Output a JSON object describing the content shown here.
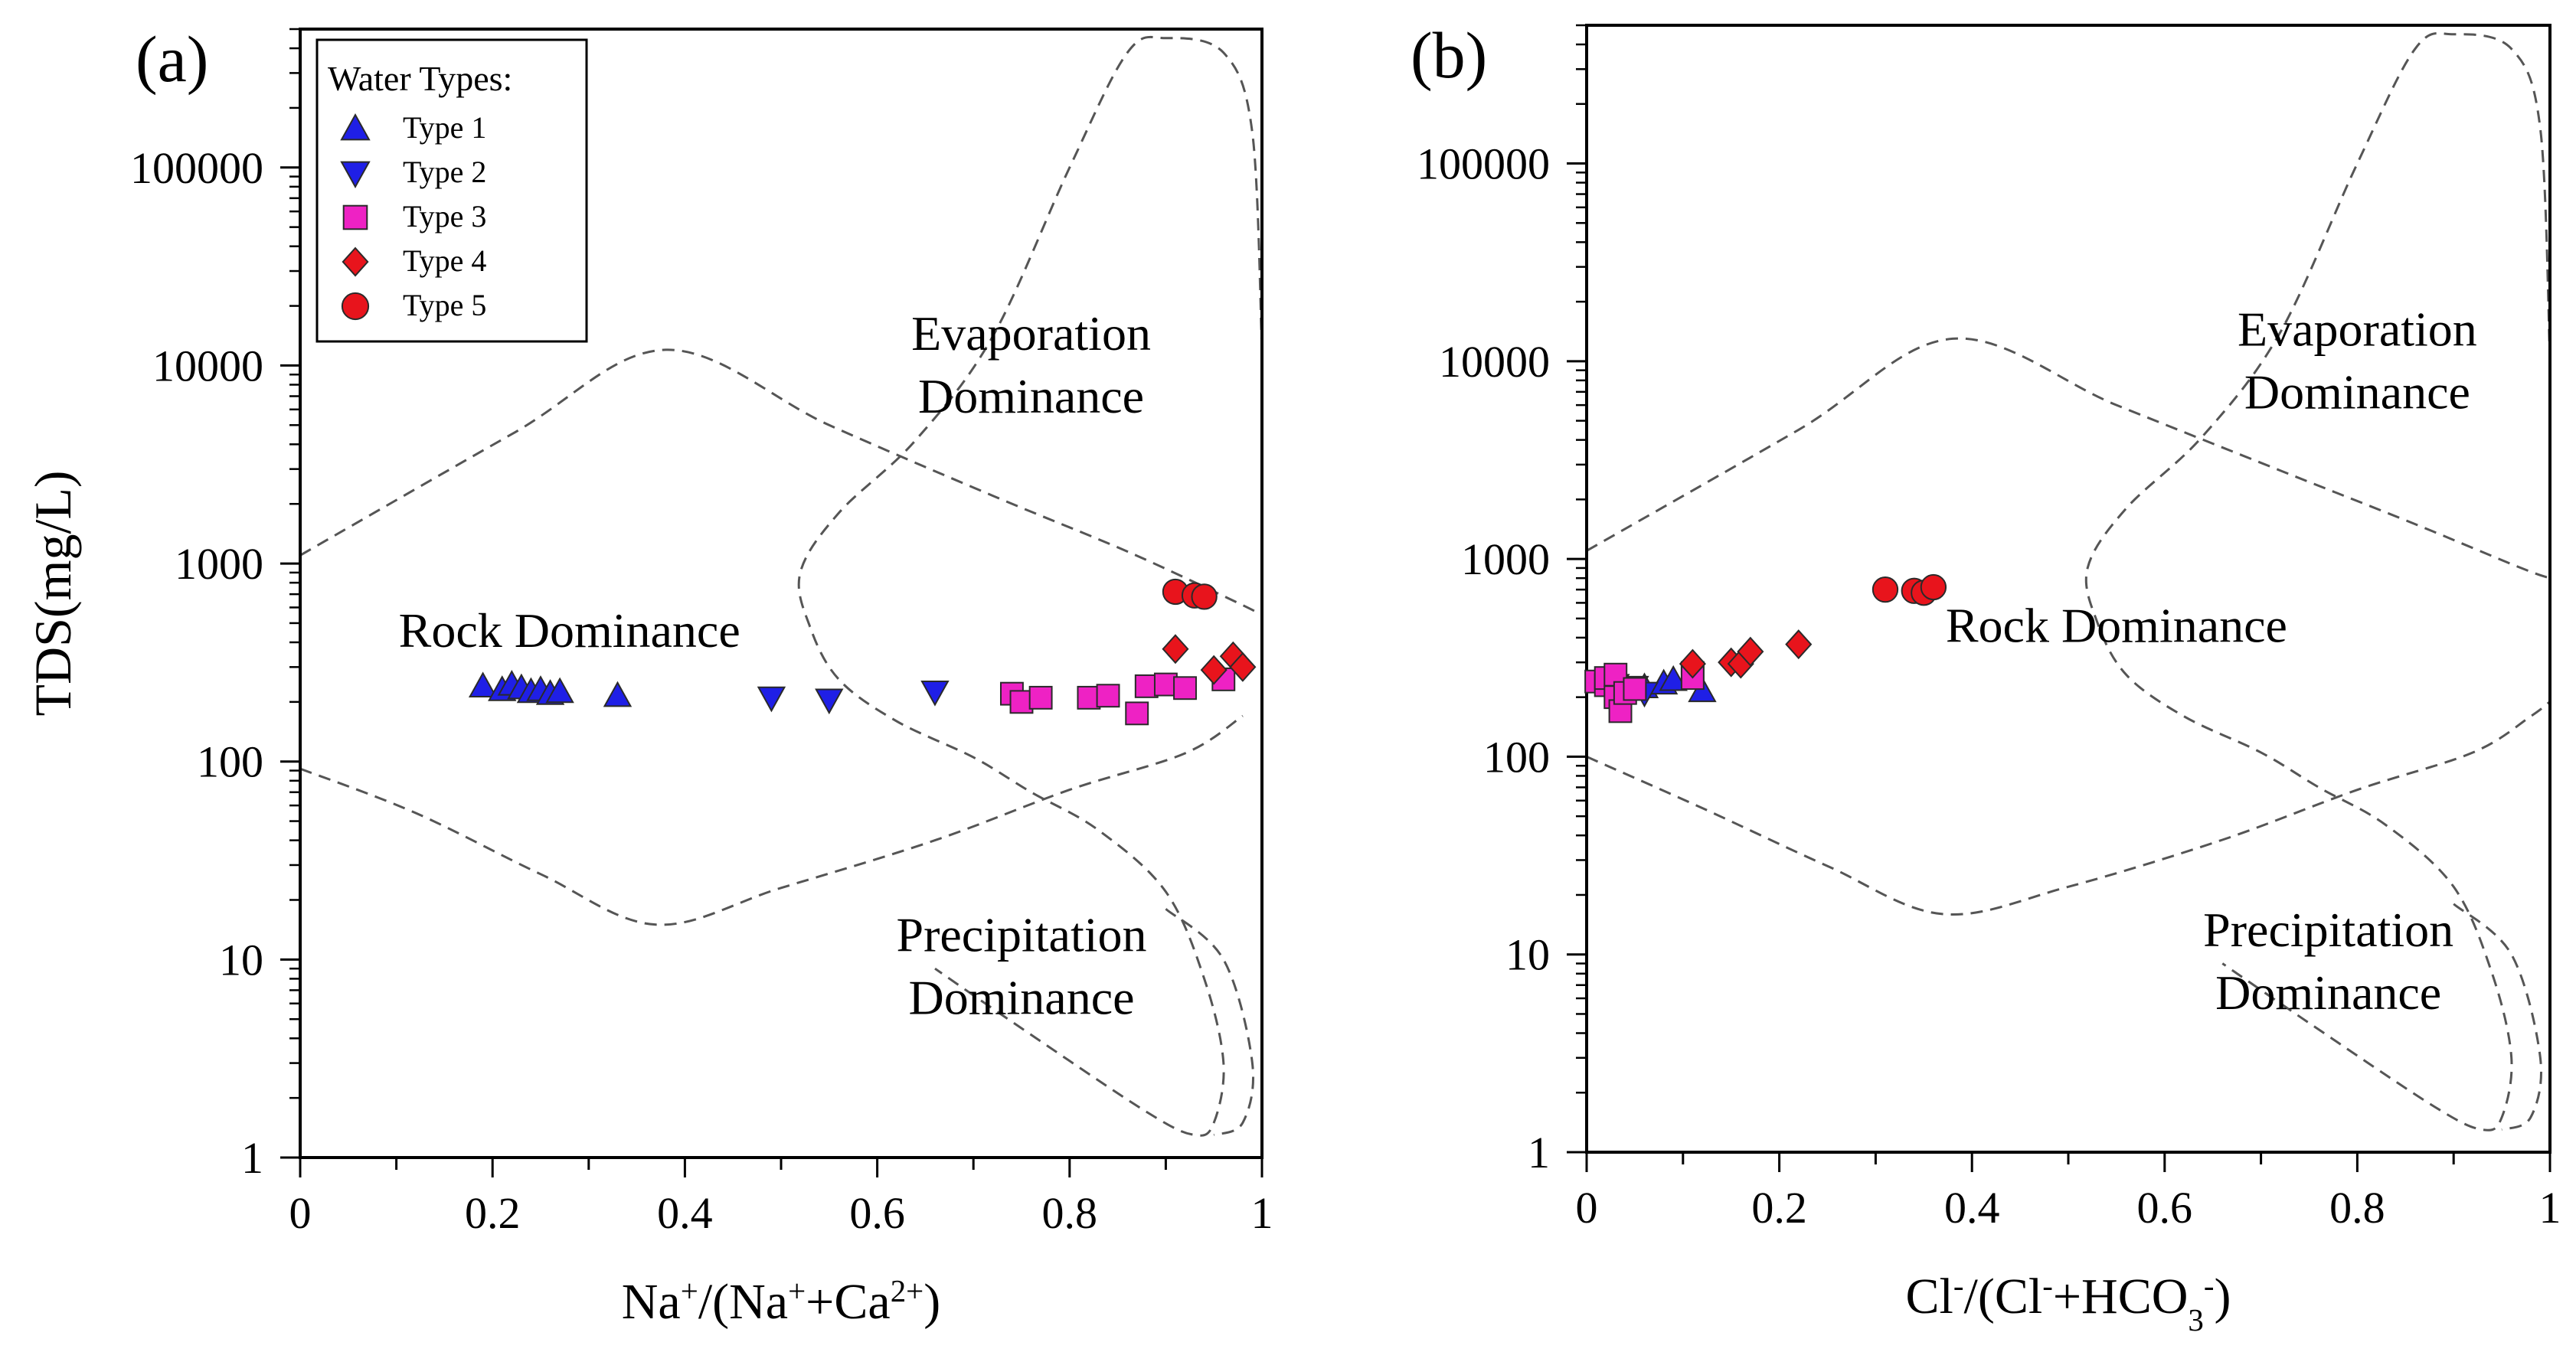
{
  "chart_data": [
    {
      "type": "scatter",
      "panel_label": "(a)",
      "xlabel": "Na+/(Na++Ca2+)",
      "xlabel_parts": [
        {
          "t": "Na",
          "sup": false
        },
        {
          "t": "+",
          "sup": true
        },
        {
          "t": "/(Na",
          "sup": false
        },
        {
          "t": "+",
          "sup": true
        },
        {
          "t": "+Ca",
          "sup": false
        },
        {
          "t": "2+",
          "sup": true
        },
        {
          "t": ")",
          "sup": false
        }
      ],
      "ylabel": "TDS(mg/L)",
      "xlim": [
        0,
        1
      ],
      "ylim": [
        1,
        500000
      ],
      "yscale": "log",
      "x_ticks": [
        0,
        0.2,
        0.4,
        0.6,
        0.8,
        1
      ],
      "x_tick_labels": [
        "0",
        "0.2",
        "0.4",
        "0.6",
        "0.8",
        "1"
      ],
      "y_ticks": [
        1,
        10,
        100,
        1000,
        10000,
        100000
      ],
      "y_tick_labels": [
        "1",
        "10",
        "100",
        "1000",
        "10000",
        "100000"
      ],
      "legend": {
        "title": "Water Types:",
        "position": "top-left",
        "entries": [
          {
            "label": "Type 1",
            "marker": "triangle-up",
            "color": "#1f1fe6"
          },
          {
            "label": "Type 2",
            "marker": "triangle-down",
            "color": "#1f1fe6"
          },
          {
            "label": "Type 3",
            "marker": "square",
            "color": "#ee22c4"
          },
          {
            "label": "Type 4",
            "marker": "diamond",
            "color": "#e8141c"
          },
          {
            "label": "Type 5",
            "marker": "circle",
            "color": "#e8141c"
          }
        ]
      },
      "region_labels": [
        {
          "lines": [
            "Evaporation",
            "Dominance"
          ],
          "x": 0.76,
          "y": 12000
        },
        {
          "lines": [
            "Rock Dominance"
          ],
          "x": 0.28,
          "y": 380
        },
        {
          "lines": [
            "Precipitation",
            "Dominance"
          ],
          "x": 0.75,
          "y": 11
        }
      ],
      "boundaries": [
        {
          "name": "upper",
          "points": [
            [
              0,
              1100
            ],
            [
              0.22,
              4500
            ],
            [
              0.38,
              12000
            ],
            [
              0.55,
              5000
            ],
            [
              0.72,
              2200
            ],
            [
              0.86,
              1150
            ],
            [
              0.97,
              650
            ],
            [
              1.0,
              550
            ]
          ]
        },
        {
          "name": "lower",
          "points": [
            [
              0,
              92
            ],
            [
              0.12,
              55
            ],
            [
              0.25,
              27
            ],
            [
              0.37,
              15
            ],
            [
              0.5,
              23
            ],
            [
              0.66,
              40
            ],
            [
              0.8,
              72
            ],
            [
              0.92,
              110
            ],
            [
              0.98,
              170
            ]
          ]
        },
        {
          "name": "envelope",
          "points": [
            [
              1.0,
              12000
            ],
            [
              0.99,
              150000
            ],
            [
              0.96,
              380000
            ],
            [
              0.9,
              450000
            ],
            [
              0.86,
              380000
            ],
            [
              0.8,
              100000
            ],
            [
              0.72,
              14000
            ],
            [
              0.64,
              4200
            ],
            [
              0.56,
              1800
            ],
            [
              0.52,
              900
            ],
            [
              0.53,
              480
            ],
            [
              0.56,
              260
            ],
            [
              0.62,
              160
            ],
            [
              0.7,
              105
            ],
            [
              0.76,
              70
            ],
            [
              0.83,
              45
            ],
            [
              0.9,
              22
            ],
            [
              0.94,
              8
            ],
            [
              0.96,
              3
            ],
            [
              0.95,
              1.5
            ],
            [
              0.93,
              1.3
            ],
            [
              0.88,
              1.7
            ],
            [
              0.75,
              4.5
            ],
            [
              0.66,
              9
            ]
          ]
        },
        {
          "name": "envelope-right",
          "points": [
            [
              0.9,
              18
            ],
            [
              0.96,
              10
            ],
            [
              0.99,
              3
            ],
            [
              0.98,
              1.5
            ],
            [
              0.95,
              1.3
            ]
          ]
        }
      ],
      "series": [
        {
          "name": "Type 1",
          "marker": "triangle-up",
          "color": "#1f1fe6",
          "points": [
            [
              0.19,
              240
            ],
            [
              0.21,
              230
            ],
            [
              0.22,
              245
            ],
            [
              0.23,
              235
            ],
            [
              0.24,
              225
            ],
            [
              0.25,
              230
            ],
            [
              0.26,
              220
            ],
            [
              0.27,
              225
            ],
            [
              0.33,
              215
            ]
          ]
        },
        {
          "name": "Type 2",
          "marker": "triangle-down",
          "color": "#1f1fe6",
          "points": [
            [
              0.49,
              210
            ],
            [
              0.55,
              205
            ],
            [
              0.66,
              225
            ]
          ]
        },
        {
          "name": "Type 3",
          "marker": "square",
          "color": "#ee22c4",
          "points": [
            [
              0.74,
              220
            ],
            [
              0.75,
              200
            ],
            [
              0.77,
              210
            ],
            [
              0.82,
              210
            ],
            [
              0.84,
              215
            ],
            [
              0.87,
              175
            ],
            [
              0.88,
              240
            ],
            [
              0.9,
              245
            ],
            [
              0.92,
              235
            ],
            [
              0.96,
              260
            ]
          ]
        },
        {
          "name": "Type 4",
          "marker": "diamond",
          "color": "#e8141c",
          "points": [
            [
              0.91,
              370
            ],
            [
              0.95,
              290
            ],
            [
              0.97,
              340
            ],
            [
              0.98,
              300
            ]
          ]
        },
        {
          "name": "Type 5",
          "marker": "circle",
          "color": "#e8141c",
          "points": [
            [
              0.91,
              720
            ],
            [
              0.93,
              690
            ],
            [
              0.94,
              680
            ]
          ]
        }
      ]
    },
    {
      "type": "scatter",
      "panel_label": "(b)",
      "xlabel": "Cl-/(Cl-+HCO3-)",
      "xlabel_parts": [
        {
          "t": "Cl",
          "sup": false
        },
        {
          "t": "-",
          "sup": true
        },
        {
          "t": "/(Cl",
          "sup": false
        },
        {
          "t": "-",
          "sup": true
        },
        {
          "t": "+HCO",
          "sup": false
        },
        {
          "t": "3",
          "sub": true
        },
        {
          "t": "-",
          "sup": true
        },
        {
          "t": ")",
          "sup": false
        }
      ],
      "ylabel": "",
      "xlim": [
        0,
        1
      ],
      "ylim": [
        1,
        500000
      ],
      "yscale": "log",
      "x_ticks": [
        0,
        0.2,
        0.4,
        0.6,
        0.8,
        1
      ],
      "x_tick_labels": [
        "0",
        "0.2",
        "0.4",
        "0.6",
        "0.8",
        "1"
      ],
      "y_ticks": [
        1,
        10,
        100,
        1000,
        10000,
        100000
      ],
      "y_tick_labels": [
        "1",
        "10",
        "100",
        "1000",
        "10000",
        "100000"
      ],
      "region_labels": [
        {
          "lines": [
            "Evaporation",
            "Dominance"
          ],
          "x": 0.8,
          "y": 12000
        },
        {
          "lines": [
            "Rock  Dominance"
          ],
          "x": 0.55,
          "y": 380
        },
        {
          "lines": [
            "Precipitation",
            "Dominance"
          ],
          "x": 0.77,
          "y": 11
        }
      ],
      "boundaries": [
        {
          "name": "upper",
          "points": [
            [
              0,
              1100
            ],
            [
              0.22,
              4500
            ],
            [
              0.38,
              13000
            ],
            [
              0.55,
              6000
            ],
            [
              0.72,
              2800
            ],
            [
              0.86,
              1500
            ],
            [
              0.97,
              900
            ],
            [
              1.0,
              800
            ]
          ]
        },
        {
          "name": "lower",
          "points": [
            [
              0,
              100
            ],
            [
              0.12,
              55
            ],
            [
              0.25,
              28
            ],
            [
              0.37,
              16
            ],
            [
              0.5,
              22
            ],
            [
              0.66,
              38
            ],
            [
              0.8,
              68
            ],
            [
              0.92,
              105
            ],
            [
              0.98,
              160
            ],
            [
              1.0,
              190
            ]
          ]
        },
        {
          "name": "envelope",
          "points": [
            [
              1.0,
              10000
            ],
            [
              0.99,
              150000
            ],
            [
              0.96,
              380000
            ],
            [
              0.9,
              450000
            ],
            [
              0.86,
              380000
            ],
            [
              0.8,
              100000
            ],
            [
              0.72,
              14000
            ],
            [
              0.64,
              4200
            ],
            [
              0.56,
              1800
            ],
            [
              0.52,
              900
            ],
            [
              0.53,
              480
            ],
            [
              0.56,
              260
            ],
            [
              0.62,
              160
            ],
            [
              0.7,
              105
            ],
            [
              0.76,
              70
            ],
            [
              0.83,
              45
            ],
            [
              0.9,
              22
            ],
            [
              0.94,
              8
            ],
            [
              0.96,
              3
            ],
            [
              0.95,
              1.5
            ],
            [
              0.93,
              1.3
            ],
            [
              0.88,
              1.7
            ],
            [
              0.75,
              4.5
            ],
            [
              0.66,
              9
            ]
          ]
        },
        {
          "name": "envelope-right",
          "points": [
            [
              0.9,
              18
            ],
            [
              0.96,
              10
            ],
            [
              0.99,
              3
            ],
            [
              0.98,
              1.5
            ],
            [
              0.95,
              1.3
            ]
          ]
        }
      ],
      "series": [
        {
          "name": "Type 1",
          "marker": "triangle-up",
          "color": "#1f1fe6",
          "points": [
            [
              0.06,
              225
            ],
            [
              0.08,
              235
            ],
            [
              0.09,
              245
            ],
            [
              0.12,
              215
            ]
          ]
        },
        {
          "name": "Type 2",
          "marker": "triangle-down",
          "color": "#1f1fe6",
          "points": [
            [
              0.03,
              230
            ],
            [
              0.04,
              215
            ],
            [
              0.05,
              225
            ],
            [
              0.06,
              210
            ]
          ]
        },
        {
          "name": "Type 3",
          "marker": "square",
          "color": "#ee22c4",
          "points": [
            [
              0.01,
              240
            ],
            [
              0.02,
              230
            ],
            [
              0.02,
              250
            ],
            [
              0.03,
              260
            ],
            [
              0.03,
              200
            ],
            [
              0.035,
              170
            ],
            [
              0.04,
              210
            ],
            [
              0.05,
              220
            ],
            [
              0.11,
              265
            ],
            [
              0.11,
              250
            ]
          ]
        },
        {
          "name": "Type 4",
          "marker": "diamond",
          "color": "#e8141c",
          "points": [
            [
              0.11,
              295
            ],
            [
              0.15,
              300
            ],
            [
              0.16,
              295
            ],
            [
              0.17,
              340
            ],
            [
              0.22,
              370
            ]
          ]
        },
        {
          "name": "Type 5",
          "marker": "circle",
          "color": "#e8141c",
          "points": [
            [
              0.31,
              700
            ],
            [
              0.34,
              690
            ],
            [
              0.35,
              675
            ],
            [
              0.36,
              720
            ]
          ]
        }
      ]
    }
  ]
}
